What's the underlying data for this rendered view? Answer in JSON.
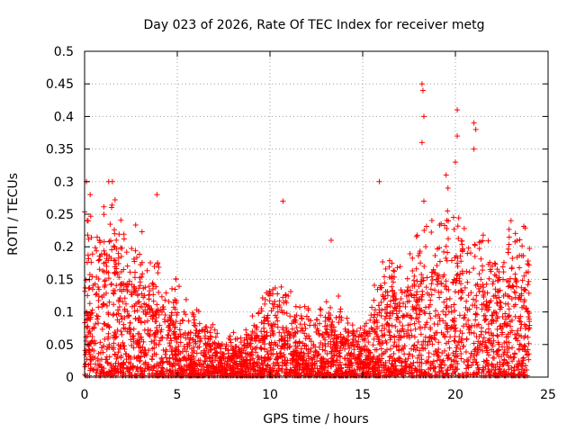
{
  "chart_data": {
    "type": "scatter",
    "title": "Day 023 of 2026, Rate Of TEC Index for receiver metg",
    "xlabel": "GPS time / hours",
    "ylabel": "ROTI / TECUs",
    "xlim": [
      0,
      25
    ],
    "ylim": [
      0,
      0.5
    ],
    "x_ticks": [
      "0",
      "5",
      "10",
      "15",
      "20",
      "25"
    ],
    "y_ticks": [
      "0",
      "0.05",
      "0.1",
      "0.15",
      "0.2",
      "0.25",
      "0.3",
      "0.35",
      "0.4",
      "0.45",
      "0.5"
    ],
    "grid": true,
    "marker": "+",
    "series_color": "#ff0000",
    "envelope": {
      "description_hours": [
        0,
        0.5,
        1,
        1.5,
        2,
        2.5,
        3,
        3.5,
        4,
        4.5,
        5,
        5.5,
        6,
        6.5,
        7,
        7.5,
        8,
        8.5,
        9,
        9.5,
        10,
        10.5,
        11,
        11.5,
        12,
        12.5,
        13,
        13.5,
        14,
        14.5,
        15,
        15.5,
        16,
        16.5,
        17,
        17.5,
        18,
        18.5,
        19,
        19.5,
        20,
        20.5,
        21,
        21.5,
        22,
        22.5,
        23,
        23.5,
        24
      ],
      "typical_max": [
        0.22,
        0.2,
        0.22,
        0.25,
        0.2,
        0.18,
        0.2,
        0.15,
        0.17,
        0.12,
        0.13,
        0.1,
        0.1,
        0.08,
        0.07,
        0.05,
        0.06,
        0.05,
        0.08,
        0.1,
        0.12,
        0.14,
        0.12,
        0.1,
        0.09,
        0.1,
        0.11,
        0.12,
        0.1,
        0.08,
        0.07,
        0.1,
        0.16,
        0.18,
        0.16,
        0.17,
        0.2,
        0.22,
        0.2,
        0.24,
        0.26,
        0.22,
        0.2,
        0.19,
        0.17,
        0.18,
        0.2,
        0.21,
        0.2
      ]
    },
    "outliers": [
      {
        "x": 0.1,
        "y": 0.3
      },
      {
        "x": 0.3,
        "y": 0.28
      },
      {
        "x": 1.3,
        "y": 0.3
      },
      {
        "x": 1.5,
        "y": 0.3
      },
      {
        "x": 3.9,
        "y": 0.28
      },
      {
        "x": 10.7,
        "y": 0.27
      },
      {
        "x": 13.3,
        "y": 0.21
      },
      {
        "x": 15.9,
        "y": 0.3
      },
      {
        "x": 18.2,
        "y": 0.45
      },
      {
        "x": 18.25,
        "y": 0.44
      },
      {
        "x": 18.3,
        "y": 0.4
      },
      {
        "x": 18.2,
        "y": 0.36
      },
      {
        "x": 18.3,
        "y": 0.27
      },
      {
        "x": 20.1,
        "y": 0.41
      },
      {
        "x": 20.1,
        "y": 0.37
      },
      {
        "x": 20.0,
        "y": 0.33
      },
      {
        "x": 21.0,
        "y": 0.39
      },
      {
        "x": 21.1,
        "y": 0.38
      },
      {
        "x": 21.0,
        "y": 0.35
      },
      {
        "x": 19.5,
        "y": 0.31
      },
      {
        "x": 19.6,
        "y": 0.29
      },
      {
        "x": 23.0,
        "y": 0.24
      }
    ]
  }
}
